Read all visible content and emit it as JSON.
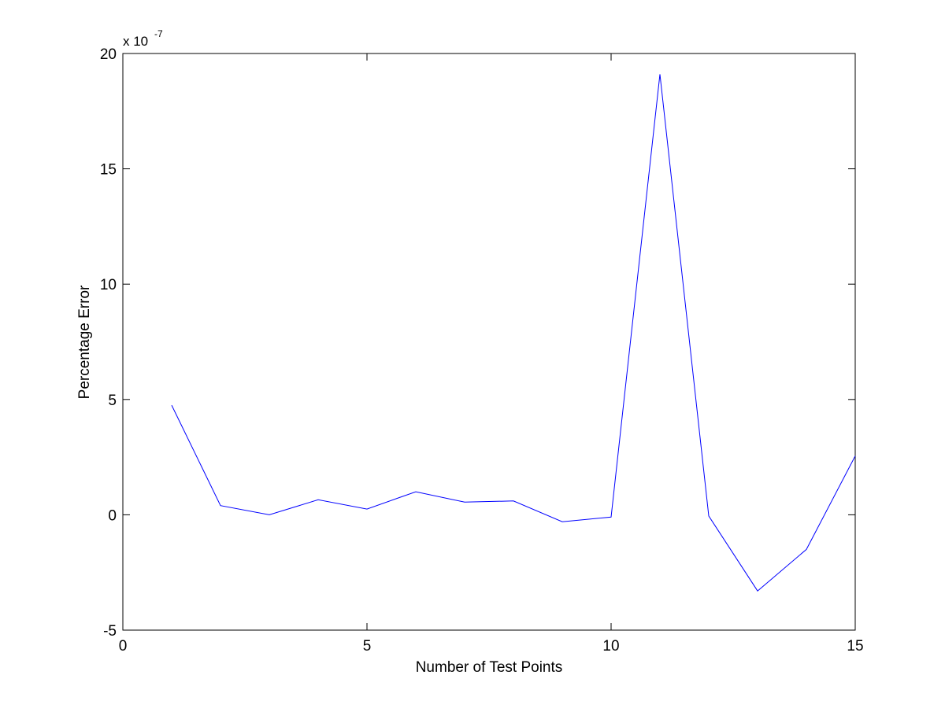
{
  "chart_data": {
    "type": "line",
    "title": "",
    "xlabel": "Number of Test Points",
    "ylabel": "Percentage Error",
    "xlim": [
      0,
      15
    ],
    "ylim": [
      -5,
      20
    ],
    "x_ticks": [
      0,
      5,
      10,
      15
    ],
    "y_ticks": [
      -5,
      0,
      5,
      10,
      15,
      20
    ],
    "y_exponent_base": "x 10",
    "y_exponent_power": "-7",
    "grid": false,
    "series": [
      {
        "color": "#0000ff",
        "x": [
          1,
          2,
          3,
          4,
          5,
          6,
          7,
          8,
          9,
          10,
          11,
          12,
          13,
          14,
          15
        ],
        "y": [
          4.75,
          0.4,
          0.0,
          0.65,
          0.25,
          1.0,
          0.55,
          0.6,
          -0.3,
          -0.1,
          19.1,
          -0.05,
          -3.3,
          -1.5,
          2.55
        ]
      }
    ]
  }
}
